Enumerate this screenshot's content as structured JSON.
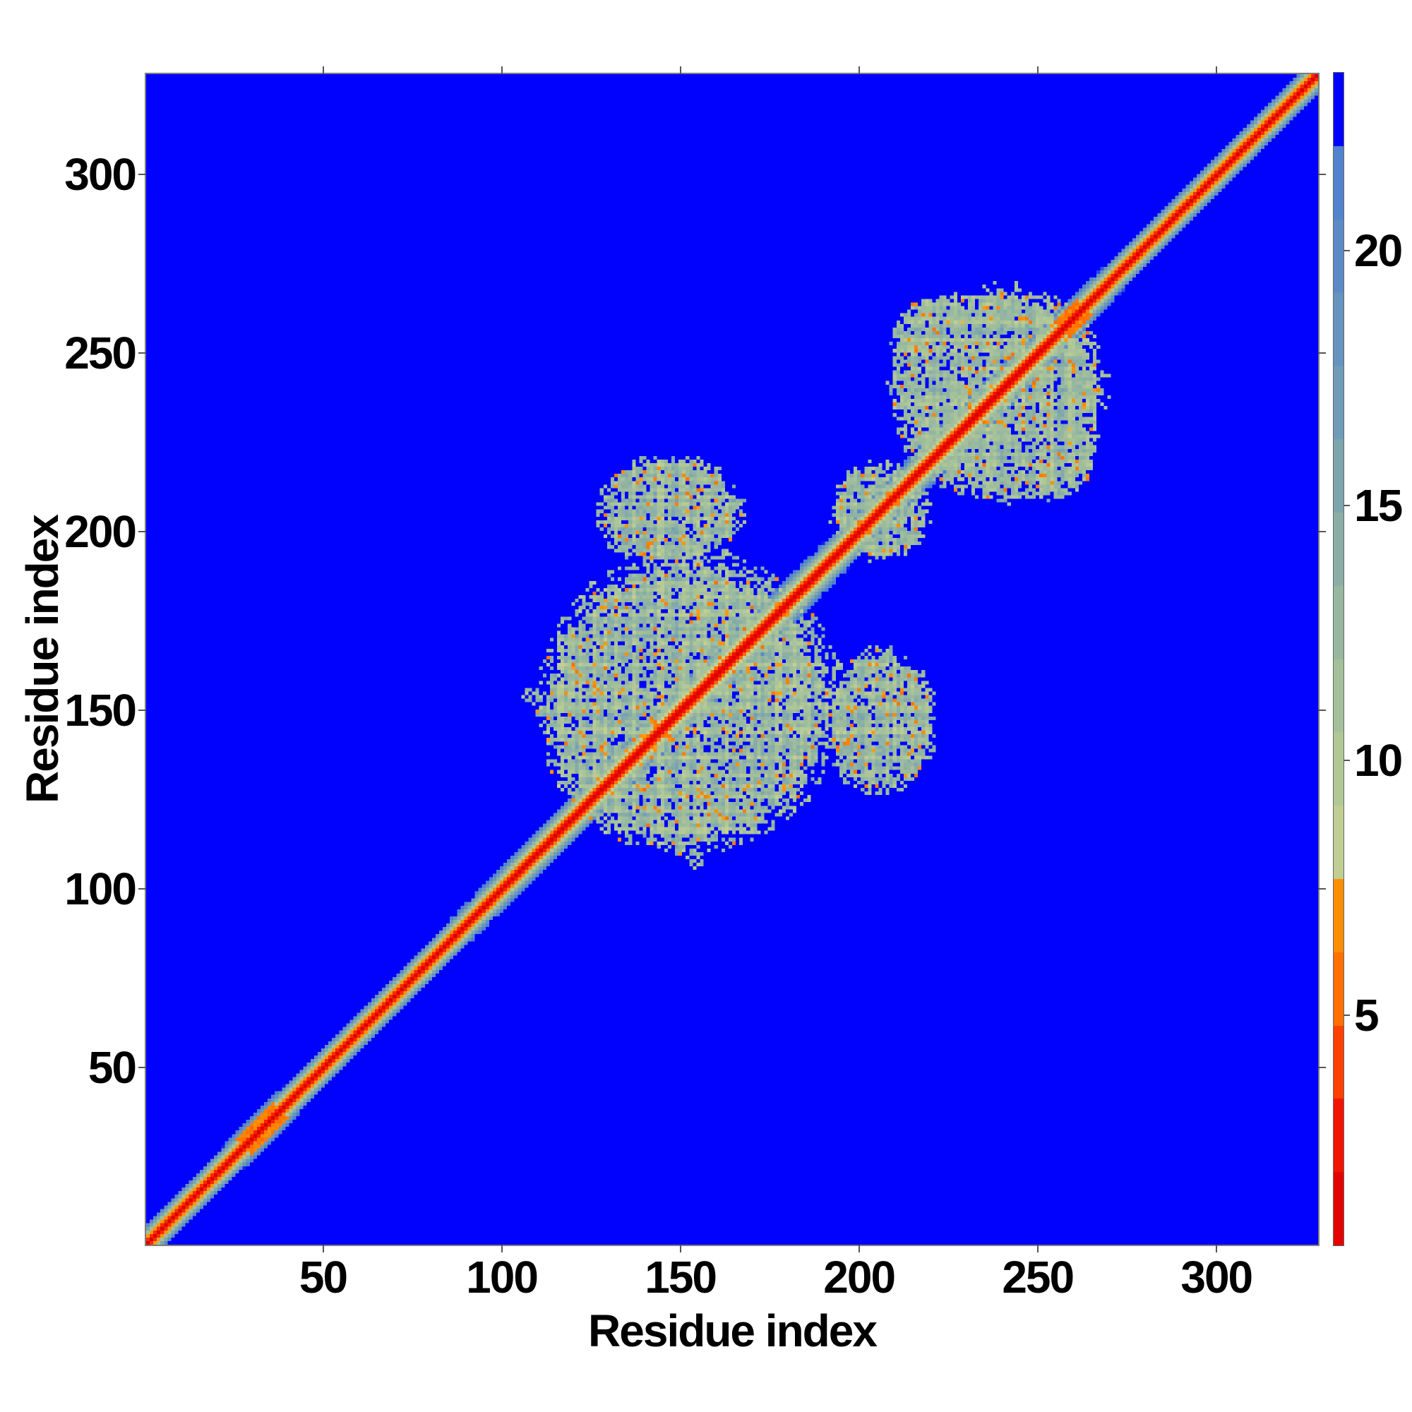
{
  "figure": {
    "background": "#ffffff"
  },
  "chart_data": {
    "type": "heatmap",
    "title": "",
    "xlabel": "Residue index",
    "ylabel": "Residue index",
    "x_ticks": [
      50,
      100,
      150,
      200,
      250,
      300
    ],
    "y_ticks": [
      50,
      100,
      150,
      200,
      250,
      300
    ],
    "axis_range": [
      0.5,
      328.5
    ],
    "n_residues": 328,
    "grid": false,
    "background_color": "#0102fd",
    "colorbar": {
      "position": "right",
      "vmin": 0.5,
      "vmax": 23.5,
      "ticks": [
        5,
        10,
        15,
        20
      ],
      "bands": 16,
      "over_color": "#0102fd",
      "under_color": "#dc0000",
      "stops": [
        [
          0.5,
          "#dc0000"
        ],
        [
          2.2,
          "#ee0800"
        ],
        [
          3.6,
          "#fa2d00"
        ],
        [
          4.7,
          "#ff5b00"
        ],
        [
          5.8,
          "#ff7800"
        ],
        [
          7.0,
          "#fc9007"
        ],
        [
          7.8,
          "#fd9d10"
        ],
        [
          7.9,
          "#c6d092"
        ],
        [
          9.5,
          "#b5ca96"
        ],
        [
          11.5,
          "#a2bf9b"
        ],
        [
          13.5,
          "#90b3a3"
        ],
        [
          15.5,
          "#7ea6ae"
        ],
        [
          17.5,
          "#6d99ba"
        ],
        [
          19.5,
          "#5f8dc5"
        ],
        [
          21.2,
          "#5484cd"
        ],
        [
          22.15,
          "#4c7ed2"
        ],
        [
          22.25,
          "#0102fd"
        ],
        [
          23.5,
          "#0102fd"
        ]
      ]
    },
    "matrix_model": {
      "description": "Symmetric residue-residue distance matrix: red diagonal band (short distances) with smooth halo; two speckled intra-domain contact clusters (~residues 110-220 and ~208-268) of mid-range sage/slate values with scattered orange close contacts and blue holes.",
      "chain": {
        "a": 3.5,
        "p": 1.074,
        "min_factor": 0.6,
        "width_wells": [
          {
            "center": 158,
            "sigma": 55,
            "depth": 0.3
          },
          {
            "center": 240,
            "sigma": 26,
            "depth": 0.26
          },
          {
            "center": 33,
            "sigma": 12,
            "depth": 0.1
          }
        ]
      },
      "clusters": [
        {
          "cx": 152,
          "cy": 152,
          "rx": 43,
          "ry": 43
        },
        {
          "cx": 147,
          "cy": 206,
          "rx": 21,
          "ry": 16
        },
        {
          "cx": 239,
          "cy": 239,
          "rx": 31,
          "ry": 31
        },
        {
          "cx": 224,
          "cy": 254,
          "rx": 15,
          "ry": 13
        },
        {
          "cx": 206,
          "cy": 206,
          "rx": 14,
          "ry": 14
        },
        {
          "cx": 154.5,
          "cy": 107.5,
          "rx": 2.0,
          "ry": 1.6
        }
      ],
      "texture": {
        "base": 12.0,
        "plaid_amp": 3.6,
        "noise_amp": 3.0,
        "orange_frac": 0.055,
        "orange_value": 5.4,
        "hole_frac": 0.12
      },
      "diagonal_hotspots": [
        {
          "center": 33,
          "span": 5
        },
        {
          "center": 260,
          "span": 3
        }
      ],
      "seed": 7
    }
  }
}
